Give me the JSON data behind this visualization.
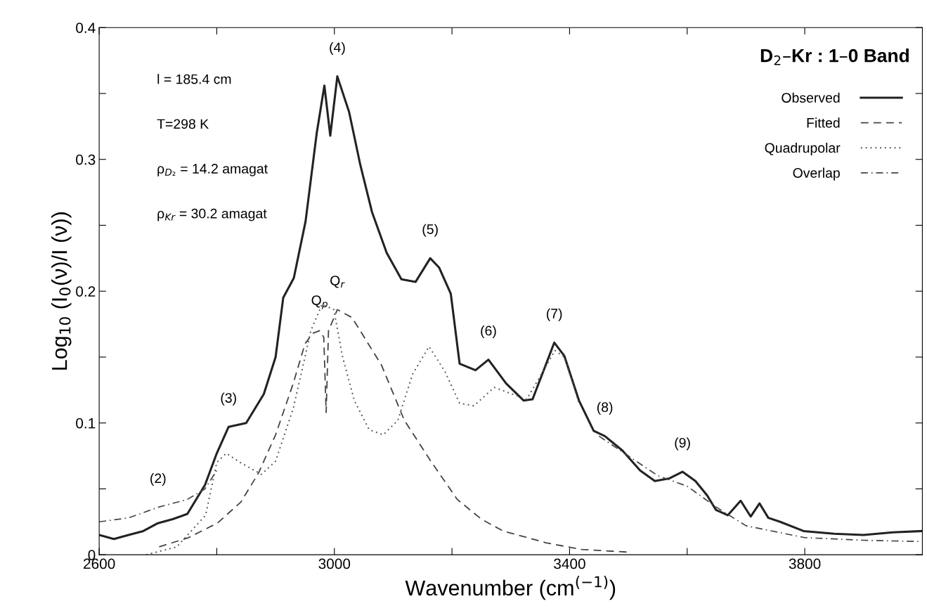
{
  "chart_data": {
    "type": "line",
    "title": "D$_{2}$–Kr : 1–0 Band",
    "xlabel": "Wavenumber (cm$^{(−1)}$)",
    "ylabel": "Log$_{10}$ (I$_{0}$(ν)/I (ν))",
    "xlim": [
      2600,
      4000
    ],
    "ylim": [
      0,
      0.4
    ],
    "xticks": [
      2600,
      {
        "value": 2800,
        "label": null
      },
      3000,
      {
        "value": 3200,
        "label": null
      },
      3400,
      {
        "value": 3600,
        "label": null
      },
      3800
    ],
    "yticks": [
      0,
      {
        "value": 0.05,
        "label": null
      },
      0.1,
      {
        "value": 0.15,
        "label": null
      },
      0.2,
      {
        "value": 0.25,
        "label": null
      },
      0.3,
      {
        "value": 0.35,
        "label": null
      },
      0.4
    ],
    "legend": "top right",
    "grid": false,
    "series": [
      {
        "name": "Observed",
        "color": "#222222",
        "line_style": "solid",
        "x": [
          2600,
          2625,
          2650,
          2675,
          2700,
          2725,
          2750,
          2780,
          2800,
          2820,
          2850,
          2880,
          2900,
          2913,
          2931,
          2951,
          2970,
          2983,
          2993,
          3005,
          3025,
          3044,
          3064,
          3089,
          3114,
          3138,
          3163,
          3178,
          3198,
          3213,
          3240,
          3262,
          3292,
          3322,
          3337,
          3356,
          3374,
          3391,
          3416,
          3441,
          3460,
          3490,
          3520,
          3545,
          3570,
          3592,
          3614,
          3634,
          3649,
          3669,
          3691,
          3708,
          3723,
          3738,
          3758,
          3798,
          3850,
          3900,
          3950,
          4000
        ],
        "values": [
          0.015,
          0.012,
          0.015,
          0.018,
          0.024,
          0.027,
          0.031,
          0.053,
          0.077,
          0.097,
          0.1,
          0.122,
          0.15,
          0.195,
          0.21,
          0.253,
          0.32,
          0.356,
          0.318,
          0.363,
          0.336,
          0.296,
          0.26,
          0.229,
          0.209,
          0.207,
          0.225,
          0.218,
          0.198,
          0.145,
          0.14,
          0.148,
          0.13,
          0.117,
          0.118,
          0.14,
          0.161,
          0.151,
          0.117,
          0.094,
          0.09,
          0.079,
          0.064,
          0.056,
          0.058,
          0.063,
          0.056,
          0.045,
          0.034,
          0.03,
          0.041,
          0.029,
          0.039,
          0.028,
          0.025,
          0.018,
          0.016,
          0.015,
          0.017,
          0.018
        ]
      },
      {
        "name": "Fitted",
        "color": "#444444",
        "line_style": "dashed",
        "x": [
          2702,
          2752,
          2801,
          2841,
          2871,
          2900,
          2930,
          2950,
          2963,
          2975,
          2982,
          2986,
          2990,
          3005,
          3030,
          3080,
          3119,
          3164,
          3209,
          3250,
          3287,
          3361,
          3421,
          3500
        ],
        "values": [
          0.006,
          0.013,
          0.024,
          0.04,
          0.062,
          0.091,
          0.13,
          0.16,
          0.168,
          0.17,
          0.165,
          0.108,
          0.17,
          0.186,
          0.18,
          0.144,
          0.102,
          0.071,
          0.042,
          0.027,
          0.018,
          0.009,
          0.004,
          0.002
        ]
      },
      {
        "name": "Quadrupolar",
        "color": "#555555",
        "line_style": "dotted",
        "x": [
          2680,
          2732,
          2781,
          2800,
          2816,
          2840,
          2876,
          2900,
          2930,
          2950,
          2960,
          2979,
          2999,
          3014,
          3034,
          3059,
          3083,
          3108,
          3133,
          3161,
          3188,
          3213,
          3237,
          3272,
          3302,
          3327,
          3356,
          3375,
          3391,
          3416
        ],
        "values": [
          0,
          0.006,
          0.03,
          0.07,
          0.077,
          0.07,
          0.061,
          0.071,
          0.111,
          0.15,
          0.17,
          0.19,
          0.186,
          0.15,
          0.117,
          0.095,
          0.091,
          0.102,
          0.137,
          0.158,
          0.139,
          0.115,
          0.113,
          0.127,
          0.122,
          0.118,
          0.14,
          0.155,
          0.15,
          0.115
        ]
      },
      {
        "name": "Overlap",
        "color": "#444444",
        "line_style": "dashdot",
        "x": [
          2600,
          2650,
          2700,
          2750,
          2780,
          2800,
          null,
          3450,
          3500,
          3550,
          3600,
          3650,
          3700,
          3800,
          3900,
          4000
        ],
        "values": [
          0.025,
          0.028,
          0.036,
          0.042,
          0.05,
          0.064,
          null,
          0.09,
          0.075,
          0.06,
          0.052,
          0.036,
          0.022,
          0.013,
          0.011,
          0.01
        ]
      }
    ],
    "annotations": [
      "l = 185.4 cm",
      "T=298 K",
      "ρ$_{D₂}$ = 14.2 amagat",
      "ρ$_{Kr}$ = 30.2 amagat",
      {
        "text": "(2)",
        "x": 2700,
        "y": 0.036
      },
      {
        "text": "(3)",
        "x": 2820,
        "y": 0.097
      },
      {
        "text": "(4)",
        "x": 3005,
        "y": 0.363
      },
      {
        "text": "(5)",
        "x": 3163,
        "y": 0.225
      },
      {
        "text": "(6)",
        "x": 3262,
        "y": 0.148
      },
      {
        "text": "(7)",
        "x": 3374,
        "y": 0.161
      },
      {
        "text": "(8)",
        "x": 3460,
        "y": 0.09
      },
      {
        "text": "(9)",
        "x": 3592,
        "y": 0.063
      },
      {
        "text": "Q$_{p}$",
        "x": 2975,
        "y": 0.17
      },
      {
        "text": "Q$_{r}$",
        "x": 3005,
        "y": 0.186
      }
    ]
  }
}
